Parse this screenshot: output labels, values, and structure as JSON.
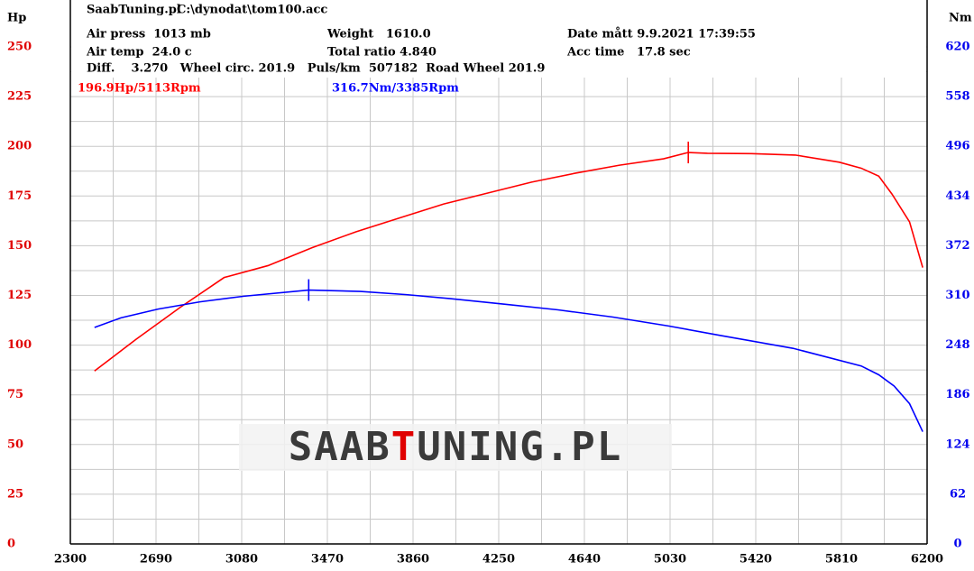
{
  "chart_data": {
    "type": "line",
    "header": [
      "SaabTuning.pl",
      "C:\\dynodat\\tom100.acc",
      "Air press  1013 mb",
      "Weight   1610.0",
      "Date mått 9.9.2021 17:39:55",
      "Air temp  24.0 c",
      "Total ratio 4.840",
      "Acc time   17.8 sec",
      "Diff.    3.270   Wheel circ. 201.9   Puls/km  507182  Road Wheel 201.9"
    ],
    "ylabel": "Hp",
    "y2label": "Nm",
    "watermark": [
      "SAAB",
      "T",
      "UNING.PL"
    ],
    "xlim": [
      2300,
      6200
    ],
    "xticks": [
      2300,
      2690,
      3080,
      3470,
      3860,
      4250,
      4640,
      5030,
      5420,
      5810,
      6200
    ],
    "ylim": [
      0,
      250
    ],
    "yticks": [
      0,
      25,
      50,
      75,
      100,
      125,
      150,
      175,
      200,
      225,
      250
    ],
    "y2lim": [
      0,
      620
    ],
    "y2ticks": [
      0,
      62,
      124,
      186,
      248,
      310,
      372,
      434,
      496,
      558,
      620
    ],
    "grid": true,
    "series": [
      {
        "color": "#ff0000",
        "axis": "y",
        "x": [
          2410,
          2600,
          2800,
          3000,
          3200,
          3400,
          3600,
          3800,
          4000,
          4200,
          4400,
          4600,
          4800,
          5000,
          5113,
          5200,
          5400,
          5600,
          5800,
          5900,
          5980,
          6040,
          6120,
          6180
        ],
        "values": [
          87,
          103,
          119,
          134,
          140,
          149,
          157,
          164,
          171,
          176.5,
          182,
          186.5,
          190.5,
          193.7,
          196.9,
          196.5,
          196.3,
          195.6,
          192,
          189,
          185,
          176,
          162,
          139
        ]
      },
      {
        "color": "#0000ff",
        "axis": "y2",
        "x": [
          2410,
          2530,
          2700,
          2890,
          3090,
          3385,
          3620,
          3830,
          4030,
          4280,
          4520,
          4770,
          5020,
          5260,
          5590,
          5900,
          5980,
          6050,
          6120,
          6180
        ],
        "values": [
          270,
          282,
          293,
          302,
          309,
          316.7,
          315,
          311,
          306,
          299,
          292,
          283,
          272,
          260,
          244,
          222,
          211,
          197,
          175,
          140
        ]
      }
    ],
    "annotations": [
      {
        "text": "196.9Hp/5113Rpm",
        "x": 5113,
        "value": 196.9,
        "series": 0
      },
      {
        "text": "316.7Nm/3385Rpm",
        "x": 3385,
        "value": 316.7,
        "series": 1
      }
    ]
  }
}
